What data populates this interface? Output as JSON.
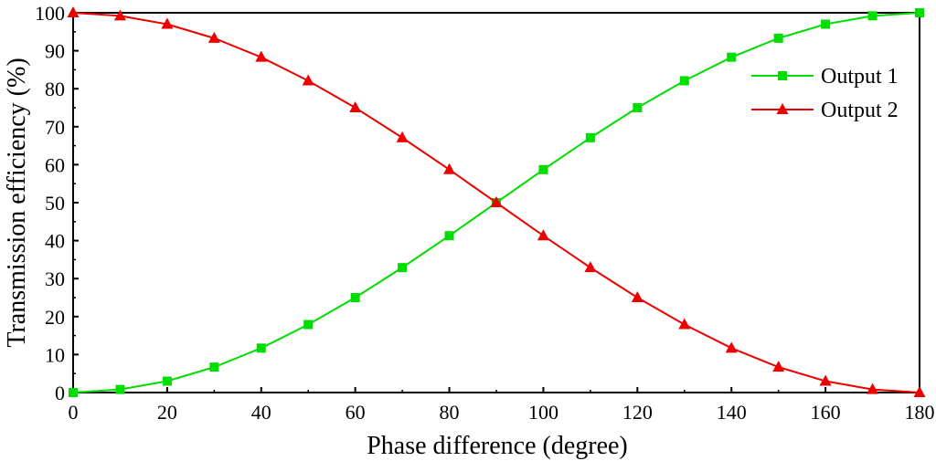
{
  "chart_data": {
    "type": "line",
    "title": "",
    "xlabel": "Phase difference (degree)",
    "ylabel": "Transmission efficiency (%)",
    "xlim": [
      0,
      180
    ],
    "ylim": [
      0,
      100
    ],
    "xticks": [
      0,
      20,
      40,
      60,
      80,
      100,
      120,
      140,
      160,
      180
    ],
    "yticks": [
      0,
      10,
      20,
      30,
      40,
      50,
      60,
      70,
      80,
      90,
      100
    ],
    "grid": false,
    "legend_position": "top-right",
    "x": [
      0,
      10,
      20,
      30,
      40,
      50,
      60,
      70,
      80,
      90,
      100,
      110,
      120,
      130,
      140,
      150,
      160,
      170,
      180
    ],
    "series": [
      {
        "name": "Output 1",
        "color": "#00dd00",
        "marker": "square",
        "values": [
          0,
          0.8,
          3.0,
          6.7,
          11.7,
          17.9,
          25.0,
          32.9,
          41.3,
          50.0,
          58.7,
          67.1,
          75.0,
          82.1,
          88.3,
          93.3,
          97.0,
          99.2,
          100
        ]
      },
      {
        "name": "Output 2",
        "color": "#ee0000",
        "marker": "triangle",
        "values": [
          100,
          99.2,
          97.0,
          93.3,
          88.3,
          82.1,
          75.0,
          67.1,
          58.7,
          50.0,
          41.3,
          32.9,
          25.0,
          17.9,
          11.7,
          6.7,
          3.0,
          0.8,
          0
        ]
      }
    ]
  }
}
